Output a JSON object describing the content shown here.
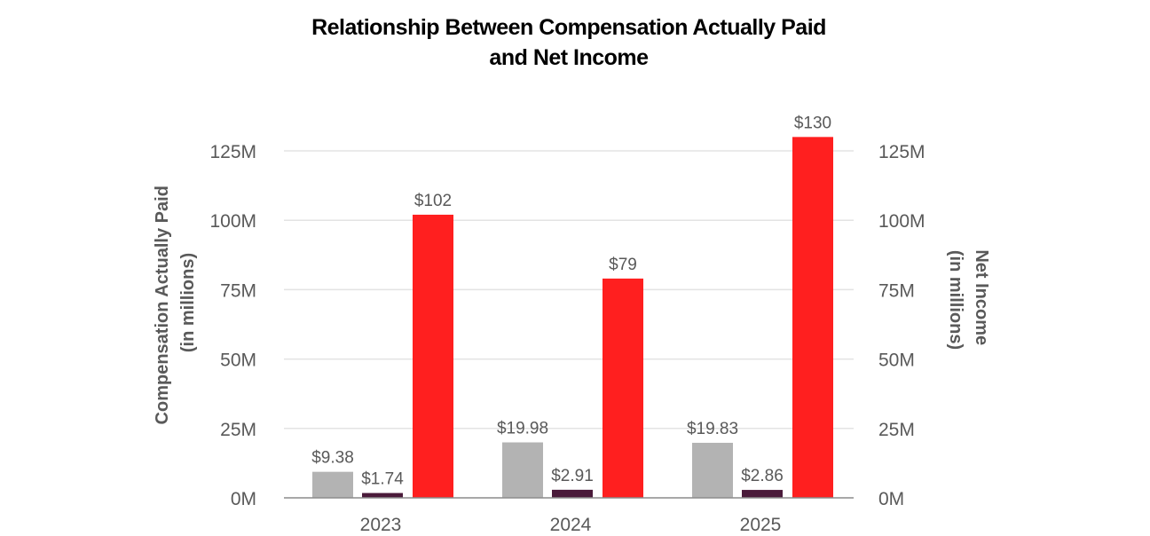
{
  "chart_data": {
    "type": "bar",
    "title": "Relationship Between Compensation Actually Paid and Net Income",
    "title_lines": [
      "Relationship Between Compensation Actually Paid",
      "and Net Income"
    ],
    "categories": [
      "2023",
      "2024",
      "2025"
    ],
    "series": [
      {
        "values": [
          9.38,
          19.98,
          19.83
        ],
        "labels": [
          "$9.38",
          "$19.98",
          "$19.83"
        ],
        "color": "#b3b3b3",
        "axis": "left"
      },
      {
        "values": [
          1.74,
          2.91,
          2.86
        ],
        "labels": [
          "$1.74",
          "$2.91",
          "$2.86"
        ],
        "color": "#4a1a3a",
        "axis": "left"
      },
      {
        "values": [
          102,
          79,
          130
        ],
        "labels": [
          "$102",
          "$79",
          "$130"
        ],
        "color": "#ff1f1f",
        "axis": "right"
      }
    ],
    "y_left": {
      "label_lines": [
        "Compensation Actually Paid",
        "(in millions)"
      ],
      "ticks": [
        0,
        25,
        50,
        75,
        100,
        125
      ],
      "tick_labels": [
        "0M",
        "25M",
        "50M",
        "75M",
        "100M",
        "125M"
      ],
      "range": [
        0,
        125
      ]
    },
    "y_right": {
      "label_lines": [
        "Net Income",
        "(in millions)"
      ],
      "ticks": [
        0,
        25,
        50,
        75,
        100,
        125
      ],
      "tick_labels": [
        "0M",
        "25M",
        "50M",
        "75M",
        "100M",
        "125M"
      ],
      "range": [
        0,
        125
      ]
    },
    "grid": true,
    "legend": "none"
  }
}
